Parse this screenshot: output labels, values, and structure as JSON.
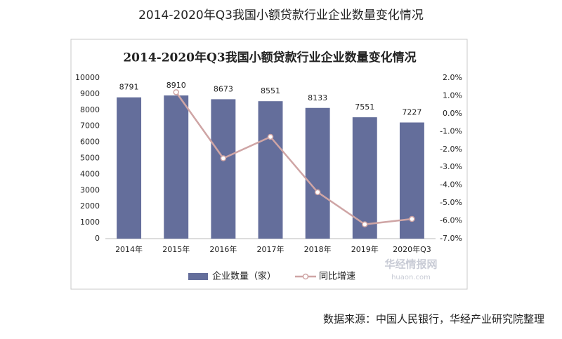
{
  "page_title": "2014-2020年Q3我国小额贷款行业企业数量变化情况",
  "source": "数据来源：中国人民银行，华经产业研究院整理",
  "watermark": [
    "华经情报网",
    "huaon.com"
  ],
  "chart_data": {
    "type": "bar",
    "title": "2014-2020年Q3我国小额贷款行业企业数量变化情况",
    "categories": [
      "2014年",
      "2015年",
      "2016年",
      "2017年",
      "2018年",
      "2019年",
      "2020年Q3"
    ],
    "series": [
      {
        "name": "企业数量（家）",
        "type": "bar",
        "color": "#646e9b",
        "values": [
          8791,
          8910,
          8673,
          8551,
          8133,
          7551,
          7227
        ]
      },
      {
        "name": "同比增速",
        "type": "line",
        "axis": "y2",
        "color": "#cfa5a5",
        "values": [
          null,
          1.2,
          -2.5,
          -1.3,
          -4.4,
          -6.2,
          -5.9
        ]
      }
    ],
    "ylim": [
      0,
      10000
    ],
    "yticks": [
      0,
      1000,
      2000,
      3000,
      4000,
      5000,
      6000,
      7000,
      8000,
      9000,
      10000
    ],
    "y2lim": [
      -7,
      2
    ],
    "y2ticks": [
      {
        "value": 2,
        "label": "2.0%"
      },
      {
        "value": 1,
        "label": "1.0%"
      },
      {
        "value": 0,
        "label": "0.0%"
      },
      {
        "value": -1,
        "label": "-1.0%"
      },
      {
        "value": -2,
        "label": "-2.0%"
      },
      {
        "value": -3,
        "label": "-3.0%"
      },
      {
        "value": -4,
        "label": "-4.0%"
      },
      {
        "value": -5,
        "label": "-5.0%"
      },
      {
        "value": -6,
        "label": "-6.0%"
      },
      {
        "value": -7,
        "label": "-7.0%"
      }
    ],
    "legend": "bottom"
  }
}
